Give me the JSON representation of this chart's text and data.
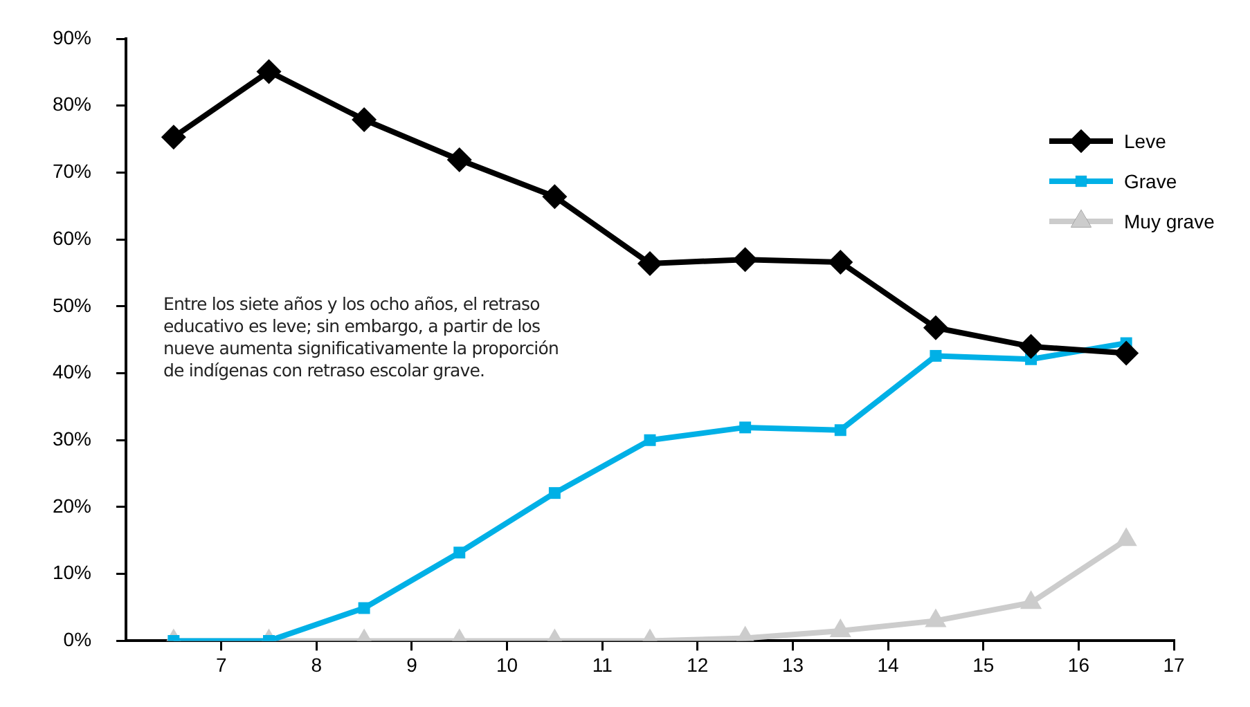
{
  "chart_data": {
    "type": "line",
    "x": [
      6.5,
      7.5,
      8.5,
      9.5,
      10.5,
      11.5,
      12.5,
      13.5,
      14.5,
      15.5,
      16.5
    ],
    "series": [
      {
        "name": "Leve",
        "color": "#000000",
        "marker": "diamond",
        "values": [
          75.3,
          85.1,
          77.9,
          71.9,
          66.4,
          56.4,
          57.0,
          56.6,
          46.8,
          44.0,
          43.0
        ]
      },
      {
        "name": "Grave",
        "color": "#00b0e6",
        "marker": "square",
        "values": [
          0,
          0,
          4.9,
          13.2,
          22.1,
          30.0,
          31.9,
          31.5,
          42.6,
          42.1,
          44.5
        ]
      },
      {
        "name": "Muy grave",
        "color": "#cccccc",
        "marker": "triangle",
        "values": [
          0,
          0,
          0,
          0,
          0,
          0,
          0.4,
          1.5,
          3.0,
          5.7,
          15.1
        ]
      }
    ],
    "xlim": [
      6,
      17
    ],
    "xticks": [
      7,
      8,
      9,
      10,
      11,
      12,
      13,
      14,
      15,
      16,
      17
    ],
    "ylim": [
      0,
      90
    ],
    "yticks": [
      {
        "value": 0,
        "label": "0%"
      },
      {
        "value": 10,
        "label": "10%"
      },
      {
        "value": 20,
        "label": "20%"
      },
      {
        "value": 30,
        "label": "30%"
      },
      {
        "value": 40,
        "label": "40%"
      },
      {
        "value": 50,
        "label": "50%"
      },
      {
        "value": 60,
        "label": "60%"
      },
      {
        "value": 70,
        "label": "70%"
      },
      {
        "value": 80,
        "label": "80%"
      },
      {
        "value": 90,
        "label": "90%"
      }
    ],
    "grid": false,
    "legend": "top right",
    "line_style": "solid",
    "annotations": [
      "Entre los siete años y los ocho años, el retraso educativo es leve; sin embargo, a partir de los nueve aumenta significativamente la proporción de indígenas con retraso escolar grave."
    ]
  }
}
